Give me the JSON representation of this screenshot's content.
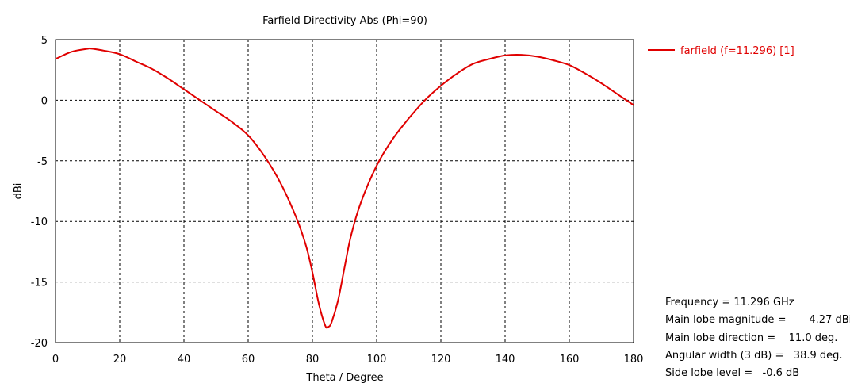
{
  "chart_data": {
    "type": "line",
    "title": "Farfield Directivity Abs (Phi=90)",
    "xlabel": "Theta / Degree",
    "ylabel": "dBi",
    "xlim": [
      0,
      180
    ],
    "ylim": [
      -20,
      5
    ],
    "xticks": [
      "0",
      "20",
      "40",
      "60",
      "80",
      "100",
      "120",
      "140",
      "160",
      "180"
    ],
    "yticks": [
      "5",
      "0",
      "-5",
      "-10",
      "-15",
      "-20"
    ],
    "grid": true,
    "grid_style": "dashed",
    "legend_position": "top-right outside",
    "series": [
      {
        "name": "farfield (f=11.296) [1]",
        "color": "#e00000",
        "x": [
          0,
          5,
          10,
          11,
          15,
          20,
          25,
          30,
          35,
          40,
          45,
          50,
          55,
          60,
          65,
          70,
          75,
          78,
          80,
          82,
          84,
          85,
          86,
          88,
          90,
          92,
          95,
          100,
          105,
          110,
          115,
          120,
          125,
          130,
          135,
          140,
          145,
          150,
          155,
          160,
          165,
          170,
          175,
          180
        ],
        "y": [
          3.4,
          4.0,
          4.25,
          4.27,
          4.1,
          3.8,
          3.2,
          2.6,
          1.8,
          0.9,
          0.0,
          -0.9,
          -1.8,
          -2.9,
          -4.6,
          -6.8,
          -9.7,
          -12.0,
          -14.2,
          -16.8,
          -18.6,
          -18.7,
          -18.3,
          -16.5,
          -13.8,
          -11.2,
          -8.5,
          -5.4,
          -3.2,
          -1.5,
          0.0,
          1.2,
          2.2,
          3.0,
          3.4,
          3.7,
          3.75,
          3.6,
          3.3,
          2.9,
          2.2,
          1.4,
          0.5,
          -0.4
        ]
      }
    ],
    "annotations": [
      {
        "label": "Frequency",
        "value": "= 11.296 GHz"
      },
      {
        "label": "Main lobe magnitude",
        "value": "=       4.27 dBi"
      },
      {
        "label": "Main lobe direction",
        "value": "=    11.0 deg."
      },
      {
        "label": "Angular width (3 dB)",
        "value": "=   38.9 deg."
      },
      {
        "label": "Side lobe level",
        "value": "=   -0.6 dB"
      }
    ]
  }
}
